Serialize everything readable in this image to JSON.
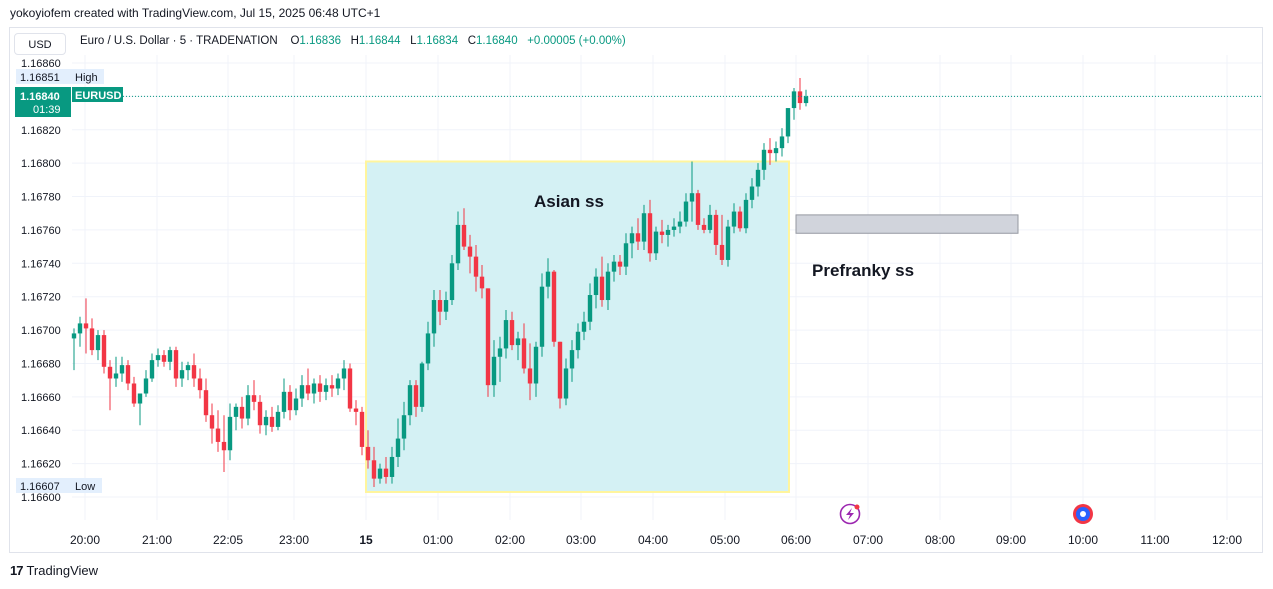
{
  "header": {
    "created_text": "yokoyiofem created with TradingView.com, Jul 15, 2025 06:48 UTC+1"
  },
  "toolbar": {
    "currency": "USD"
  },
  "legend": {
    "symbol": "Euro / U.S. Dollar · 5 · TRADENATION",
    "o_label": "O",
    "o_value": "1.16836",
    "h_label": "H",
    "h_value": "1.16844",
    "l_label": "L",
    "l_value": "1.16834",
    "c_label": "C",
    "c_value": "1.16840",
    "change": "+0.00005 (+0.00%)"
  },
  "price_axis": {
    "ticks": [
      "1.16860",
      "1.16840",
      "1.16820",
      "1.16800",
      "1.16780",
      "1.16760",
      "1.16740",
      "1.16720",
      "1.16700",
      "1.16680",
      "1.16660",
      "1.16640",
      "1.16620",
      "1.16600"
    ],
    "high_value": "1.16851",
    "high_label": "High",
    "low_value": "1.16607",
    "low_label": "Low",
    "current_value": "1.16840",
    "current_symbol": "EURUSD",
    "countdown": "01:39"
  },
  "time_axis": {
    "ticks": [
      "20:00",
      "21:00",
      "22:05",
      "23:00",
      "15",
      "01:00",
      "02:00",
      "03:00",
      "04:00",
      "05:00",
      "06:00",
      "07:00",
      "08:00",
      "09:00",
      "10:00",
      "11:00",
      "12:00"
    ]
  },
  "annotations": {
    "asian_label": "Asian ss",
    "prefranky_label": "Prefranky ss"
  },
  "icons": {
    "lightning": "lightning-icon",
    "economic_event": "economic-event-icon"
  },
  "colors": {
    "up": "#089981",
    "down": "#f23645",
    "box_fill": "#d4f1f4",
    "box_border": "#fff59d",
    "zone_fill": "#d1d4dc"
  },
  "footer": {
    "brand": "TradingView"
  },
  "chart_data": {
    "type": "candlestick",
    "symbol": "EURUSD",
    "timeframe": "5",
    "ylim": [
      1.16595,
      1.16865
    ],
    "x_ticks": [
      "20:00",
      "21:00",
      "22:05",
      "23:00",
      "15",
      "01:00",
      "02:00",
      "03:00",
      "04:00",
      "05:00",
      "06:00",
      "07:00",
      "08:00",
      "09:00",
      "10:00",
      "11:00",
      "12:00"
    ],
    "zones": [
      {
        "label": "Asian ss",
        "start": "00:00",
        "end": "06:00",
        "low": 1.16603,
        "high": 1.16801
      },
      {
        "label": "Prefranky ss",
        "start": "06:00",
        "end": "09:10",
        "low": 1.16758,
        "high": 1.16769
      }
    ],
    "candles": [
      [
        1.16695,
        1.16701,
        1.16676,
        1.16698
      ],
      [
        1.16698,
        1.16708,
        1.1669,
        1.16704
      ],
      [
        1.16704,
        1.16719,
        1.16686,
        1.16701
      ],
      [
        1.16701,
        1.16707,
        1.16685,
        1.16688
      ],
      [
        1.16688,
        1.167,
        1.16682,
        1.16697
      ],
      [
        1.16697,
        1.167,
        1.16674,
        1.16678
      ],
      [
        1.16678,
        1.16682,
        1.16652,
        1.16671
      ],
      [
        1.16671,
        1.16684,
        1.16666,
        1.16674
      ],
      [
        1.16674,
        1.16684,
        1.16669,
        1.16679
      ],
      [
        1.16679,
        1.16682,
        1.16664,
        1.16668
      ],
      [
        1.16668,
        1.16672,
        1.16654,
        1.16656
      ],
      [
        1.16656,
        1.16662,
        1.16643,
        1.16662
      ],
      [
        1.16662,
        1.16676,
        1.1666,
        1.16671
      ],
      [
        1.16671,
        1.16686,
        1.16669,
        1.16682
      ],
      [
        1.16682,
        1.16689,
        1.16678,
        1.16685
      ],
      [
        1.16685,
        1.16688,
        1.16678,
        1.16681
      ],
      [
        1.16681,
        1.1669,
        1.16676,
        1.16688
      ],
      [
        1.16688,
        1.1669,
        1.16666,
        1.16671
      ],
      [
        1.16671,
        1.16681,
        1.16666,
        1.16676
      ],
      [
        1.16676,
        1.16681,
        1.1667,
        1.16679
      ],
      [
        1.16679,
        1.16686,
        1.16666,
        1.16671
      ],
      [
        1.16671,
        1.16677,
        1.16659,
        1.16664
      ],
      [
        1.16664,
        1.16671,
        1.16645,
        1.16649
      ],
      [
        1.16649,
        1.16656,
        1.16632,
        1.16641
      ],
      [
        1.16641,
        1.16652,
        1.16627,
        1.16633
      ],
      [
        1.16633,
        1.16649,
        1.16615,
        1.16628
      ],
      [
        1.16628,
        1.16656,
        1.16622,
        1.16648
      ],
      [
        1.16648,
        1.16656,
        1.1664,
        1.16654
      ],
      [
        1.16654,
        1.1666,
        1.16641,
        1.16647
      ],
      [
        1.16647,
        1.16667,
        1.16643,
        1.16661
      ],
      [
        1.16661,
        1.1667,
        1.16652,
        1.16657
      ],
      [
        1.16657,
        1.16661,
        1.16638,
        1.16643
      ],
      [
        1.16643,
        1.16652,
        1.16637,
        1.16648
      ],
      [
        1.16648,
        1.16654,
        1.16639,
        1.16642
      ],
      [
        1.16642,
        1.16655,
        1.1664,
        1.16651
      ],
      [
        1.16651,
        1.16671,
        1.16647,
        1.16663
      ],
      [
        1.16663,
        1.16667,
        1.16646,
        1.16652
      ],
      [
        1.16652,
        1.16665,
        1.16649,
        1.16659
      ],
      [
        1.16659,
        1.16673,
        1.16654,
        1.16667
      ],
      [
        1.16667,
        1.16677,
        1.16658,
        1.16662
      ],
      [
        1.16662,
        1.16671,
        1.16656,
        1.16668
      ],
      [
        1.16668,
        1.16673,
        1.16657,
        1.16663
      ],
      [
        1.16663,
        1.16671,
        1.16658,
        1.16667
      ],
      [
        1.16667,
        1.16673,
        1.1666,
        1.16665
      ],
      [
        1.16665,
        1.16674,
        1.16661,
        1.16671
      ],
      [
        1.16671,
        1.16682,
        1.16664,
        1.16677
      ],
      [
        1.16677,
        1.1668,
        1.16651,
        1.16653
      ],
      [
        1.16653,
        1.16658,
        1.16643,
        1.16651
      ],
      [
        1.16651,
        1.16654,
        1.16625,
        1.1663
      ],
      [
        1.1663,
        1.1664,
        1.16617,
        1.16622
      ],
      [
        1.16622,
        1.1663,
        1.16606,
        1.16611
      ],
      [
        1.16611,
        1.1662,
        1.16608,
        1.16617
      ],
      [
        1.16617,
        1.16624,
        1.16608,
        1.16612
      ],
      [
        1.16612,
        1.1663,
        1.16608,
        1.16624
      ],
      [
        1.16624,
        1.16647,
        1.16618,
        1.16635
      ],
      [
        1.16635,
        1.16657,
        1.16628,
        1.16649
      ],
      [
        1.16649,
        1.1667,
        1.16643,
        1.16667
      ],
      [
        1.16667,
        1.1667,
        1.16648,
        1.16654
      ],
      [
        1.16654,
        1.16681,
        1.16651,
        1.1668
      ],
      [
        1.1668,
        1.16705,
        1.16676,
        1.16698
      ],
      [
        1.16698,
        1.16724,
        1.1669,
        1.16718
      ],
      [
        1.16718,
        1.16724,
        1.16703,
        1.16711
      ],
      [
        1.16711,
        1.16723,
        1.16706,
        1.16718
      ],
      [
        1.16718,
        1.16745,
        1.16715,
        1.1674
      ],
      [
        1.1674,
        1.16771,
        1.16736,
        1.16763
      ],
      [
        1.16763,
        1.16773,
        1.16748,
        1.1675
      ],
      [
        1.1675,
        1.16757,
        1.16734,
        1.16744
      ],
      [
        1.16744,
        1.16751,
        1.16723,
        1.16732
      ],
      [
        1.16732,
        1.16739,
        1.16719,
        1.16725
      ],
      [
        1.16725,
        1.16725,
        1.1666,
        1.16667
      ],
      [
        1.16667,
        1.16694,
        1.1666,
        1.16684
      ],
      [
        1.16684,
        1.16696,
        1.16669,
        1.16689
      ],
      [
        1.16689,
        1.16712,
        1.16683,
        1.16706
      ],
      [
        1.16706,
        1.16711,
        1.16688,
        1.16691
      ],
      [
        1.16691,
        1.16699,
        1.16682,
        1.16695
      ],
      [
        1.16695,
        1.16704,
        1.16674,
        1.16677
      ],
      [
        1.16677,
        1.16692,
        1.16658,
        1.16668
      ],
      [
        1.16668,
        1.16693,
        1.1666,
        1.1669
      ],
      [
        1.1669,
        1.16734,
        1.16684,
        1.16726
      ],
      [
        1.16726,
        1.16743,
        1.16719,
        1.16735
      ],
      [
        1.16735,
        1.16736,
        1.1669,
        1.16693
      ],
      [
        1.16693,
        1.16693,
        1.16653,
        1.16659
      ],
      [
        1.16659,
        1.16683,
        1.16655,
        1.16677
      ],
      [
        1.16677,
        1.16694,
        1.16669,
        1.16688
      ],
      [
        1.16688,
        1.16704,
        1.16683,
        1.16699
      ],
      [
        1.16699,
        1.16711,
        1.16694,
        1.16705
      ],
      [
        1.16705,
        1.16728,
        1.167,
        1.16721
      ],
      [
        1.16721,
        1.16737,
        1.16713,
        1.16732
      ],
      [
        1.16732,
        1.16744,
        1.16714,
        1.16718
      ],
      [
        1.16718,
        1.1674,
        1.16712,
        1.16735
      ],
      [
        1.16735,
        1.16745,
        1.16729,
        1.16741
      ],
      [
        1.16741,
        1.16745,
        1.16733,
        1.16738
      ],
      [
        1.16738,
        1.16758,
        1.16733,
        1.16752
      ],
      [
        1.16752,
        1.16762,
        1.16743,
        1.16758
      ],
      [
        1.16758,
        1.16767,
        1.16748,
        1.16753
      ],
      [
        1.16753,
        1.16775,
        1.16748,
        1.1677
      ],
      [
        1.1677,
        1.16778,
        1.16741,
        1.16746
      ],
      [
        1.16746,
        1.16762,
        1.16742,
        1.16759
      ],
      [
        1.16759,
        1.16766,
        1.16752,
        1.16757
      ],
      [
        1.16757,
        1.16763,
        1.1675,
        1.1676
      ],
      [
        1.1676,
        1.16767,
        1.16756,
        1.16762
      ],
      [
        1.16762,
        1.16771,
        1.16758,
        1.16765
      ],
      [
        1.16765,
        1.16782,
        1.16762,
        1.16777
      ],
      [
        1.16777,
        1.16801,
        1.16765,
        1.16782
      ],
      [
        1.16782,
        1.16784,
        1.1676,
        1.16763
      ],
      [
        1.16763,
        1.16767,
        1.16758,
        1.1676
      ],
      [
        1.1676,
        1.16775,
        1.16758,
        1.16769
      ],
      [
        1.16769,
        1.16772,
        1.16745,
        1.16751
      ],
      [
        1.16751,
        1.16769,
        1.16739,
        1.16742
      ],
      [
        1.16742,
        1.16766,
        1.16738,
        1.16762
      ],
      [
        1.16762,
        1.16776,
        1.16758,
        1.16771
      ],
      [
        1.16771,
        1.16774,
        1.16759,
        1.16761
      ],
      [
        1.16761,
        1.16782,
        1.16758,
        1.16778
      ],
      [
        1.16778,
        1.16791,
        1.16773,
        1.16786
      ],
      [
        1.16786,
        1.168,
        1.1678,
        1.16796
      ],
      [
        1.16796,
        1.16812,
        1.1679,
        1.16808
      ],
      [
        1.16808,
        1.16815,
        1.16799,
        1.16806
      ],
      [
        1.16806,
        1.16813,
        1.16801,
        1.16809
      ],
      [
        1.16809,
        1.16821,
        1.16804,
        1.16816
      ],
      [
        1.16816,
        1.16833,
        1.16812,
        1.16833
      ],
      [
        1.16833,
        1.16845,
        1.16826,
        1.16843
      ],
      [
        1.16843,
        1.16851,
        1.16832,
        1.16836
      ],
      [
        1.16836,
        1.16844,
        1.16834,
        1.1684
      ]
    ]
  }
}
